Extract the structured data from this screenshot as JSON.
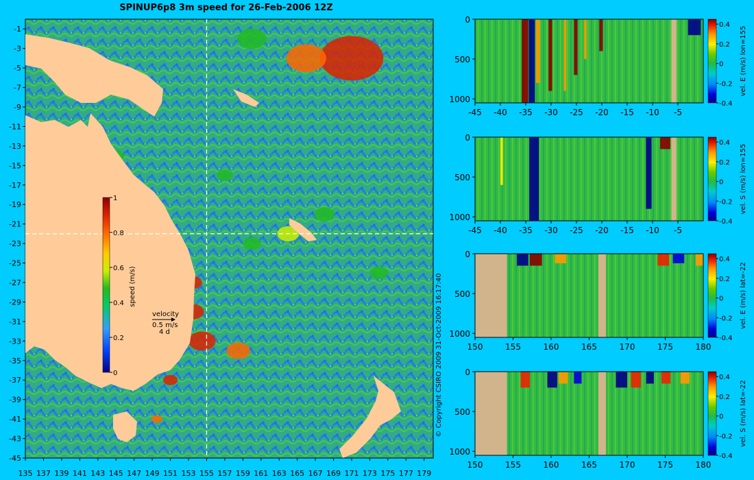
{
  "title": "SPINUP6p8 3m speed for 26-Feb-2006 12Z",
  "copyright": "© Copyright CSIRO 2009   31-Oct-2009 16:17:40",
  "colors": {
    "background": "#00ccff",
    "land": "#ffcc99",
    "section_land": "#d2b48c"
  },
  "chart_data": [
    {
      "type": "heatmap",
      "panel": "speed-map",
      "x": {
        "min": 135,
        "max": 180,
        "ticks": [
          135,
          137,
          139,
          141,
          143,
          145,
          147,
          149,
          151,
          153,
          155,
          157,
          159,
          161,
          163,
          165,
          167,
          169,
          171,
          173,
          175,
          177,
          179
        ]
      },
      "y": {
        "min": -45,
        "max": 0,
        "ticks": [
          -1,
          -3,
          -5,
          -7,
          -9,
          -11,
          -13,
          -15,
          -17,
          -19,
          -21,
          -23,
          -25,
          -27,
          -29,
          -31,
          -33,
          -35,
          -37,
          -39,
          -41,
          -43,
          -45
        ]
      },
      "section_lines": {
        "lon": 155,
        "lat": -22
      },
      "colorbar": {
        "label": "speed (m/s)",
        "min": 0,
        "max": 1,
        "ticks": [
          0,
          0.2,
          0.4,
          0.6,
          0.8,
          1
        ],
        "tick_labels": [
          "0",
          "0.2",
          "0.4",
          "0.6",
          "0.8",
          "1"
        ]
      },
      "velocity_key": {
        "label": "velocity",
        "magnitude": "0.5 m/s",
        "duration": "4 d"
      },
      "features": [
        {
          "lon": 171,
          "lat": -4,
          "speed": 0.95,
          "r": 3.5
        },
        {
          "lon": 166,
          "lat": -4,
          "speed": 0.8,
          "r": 2.2
        },
        {
          "lon": 160,
          "lat": -2,
          "speed": 0.5,
          "r": 1.6
        },
        {
          "lon": 153.5,
          "lat": -27,
          "speed": 0.95,
          "r": 1.0
        },
        {
          "lon": 153.5,
          "lat": -30,
          "speed": 0.9,
          "r": 1.2
        },
        {
          "lon": 154.5,
          "lat": -33,
          "speed": 0.95,
          "r": 1.5
        },
        {
          "lon": 158.5,
          "lat": -34,
          "speed": 0.8,
          "r": 1.3
        },
        {
          "lon": 151,
          "lat": -37,
          "speed": 0.9,
          "r": 0.8
        },
        {
          "lon": 149.5,
          "lat": -41,
          "speed": 0.85,
          "r": 0.6
        },
        {
          "lon": 164,
          "lat": -22,
          "speed": 0.6,
          "r": 1.2
        },
        {
          "lon": 168,
          "lat": -20,
          "speed": 0.55,
          "r": 1.1
        },
        {
          "lon": 160,
          "lat": -23,
          "speed": 0.55,
          "r": 1.0
        },
        {
          "lon": 145,
          "lat": -14,
          "speed": 0.5,
          "r": 0.9
        },
        {
          "lon": 174,
          "lat": -26,
          "speed": 0.5,
          "r": 1.0
        },
        {
          "lon": 157,
          "lat": -16,
          "speed": 0.5,
          "r": 0.9
        }
      ]
    },
    {
      "type": "heatmap",
      "panel": "section-1",
      "ylabel": "vel. E (m/s) lon=155",
      "x": {
        "min": -45,
        "max": 0,
        "ticks": [
          -45,
          -40,
          -35,
          -30,
          -25,
          -20,
          -15,
          -10,
          -5
        ]
      },
      "y": {
        "min": 0,
        "max": 1050,
        "ticks": [
          0,
          500,
          1000
        ],
        "inverted": true
      },
      "colorbar": {
        "min": -0.4,
        "max": 0.45,
        "ticks": [
          -0.4,
          -0.2,
          0,
          0.2,
          0.4
        ],
        "tick_labels": [
          "-0.4",
          "-0.2",
          "0",
          "0.2",
          "0.4"
        ]
      },
      "land": [
        {
          "x0": -6.3,
          "x1": -5.3,
          "d0": 0
        }
      ],
      "features": [
        {
          "x0": -35.8,
          "x1": -34.5,
          "depth": 1050,
          "value": 0.45
        },
        {
          "x0": -34.4,
          "x1": -33.2,
          "depth": 1050,
          "value": -0.4
        },
        {
          "x0": -33,
          "x1": -32.2,
          "depth": 800,
          "value": 0.3
        },
        {
          "x0": -30.5,
          "x1": -29.8,
          "depth": 900,
          "value": 0.45
        },
        {
          "x0": -27.5,
          "x1": -27,
          "depth": 900,
          "value": 0.35
        },
        {
          "x0": -25.5,
          "x1": -24.8,
          "depth": 700,
          "value": 0.45
        },
        {
          "x0": -20.5,
          "x1": -19.8,
          "depth": 400,
          "value": 0.45
        },
        {
          "x0": -23.5,
          "x1": -23,
          "depth": 500,
          "value": 0.3
        },
        {
          "x0": -3,
          "x1": -0.5,
          "depth": 200,
          "value": -0.4
        }
      ]
    },
    {
      "type": "heatmap",
      "panel": "section-2",
      "ylabel": "vel. S (m/s) lon=155",
      "x": {
        "min": -45,
        "max": 0,
        "ticks": [
          -45,
          -40,
          -35,
          -30,
          -25,
          -20,
          -15,
          -10,
          -5
        ]
      },
      "y": {
        "min": 0,
        "max": 1050,
        "ticks": [
          0,
          500,
          1000
        ],
        "inverted": true
      },
      "colorbar": {
        "min": -0.4,
        "max": 0.45,
        "ticks": [
          -0.4,
          -0.2,
          0,
          0.2,
          0.4
        ],
        "tick_labels": [
          "-0.4",
          "-0.2",
          "0",
          "0.2",
          "0.4"
        ]
      },
      "land": [
        {
          "x0": -6.3,
          "x1": -5.3,
          "d0": 0
        }
      ],
      "features": [
        {
          "x0": -34.3,
          "x1": -32.4,
          "depth": 1050,
          "value": -0.4
        },
        {
          "x0": -11.3,
          "x1": -10.2,
          "depth": 900,
          "value": -0.35
        },
        {
          "x0": -8.5,
          "x1": -6.5,
          "depth": 150,
          "value": 0.45
        },
        {
          "x0": -40,
          "x1": -39.5,
          "depth": 600,
          "value": 0.2
        }
      ]
    },
    {
      "type": "heatmap",
      "panel": "section-3",
      "ylabel": "vel. E (m/s) lat=-22",
      "x": {
        "min": 150,
        "max": 180,
        "ticks": [
          150,
          155,
          160,
          165,
          170,
          175,
          180
        ]
      },
      "y": {
        "min": 0,
        "max": 1050,
        "ticks": [
          0,
          500,
          1000
        ],
        "inverted": true
      },
      "colorbar": {
        "min": -0.4,
        "max": 0.45,
        "ticks": [
          -0.4,
          -0.2,
          0,
          0.2,
          0.4
        ],
        "tick_labels": [
          "-0.4",
          "-0.2",
          "0",
          "0.2",
          "0.4"
        ]
      },
      "land": [
        {
          "x0": 150,
          "x1": 154.2,
          "d0": 0
        },
        {
          "x0": 166.2,
          "x1": 167.2,
          "d0": 0
        }
      ],
      "features": [
        {
          "x0": 155.5,
          "x1": 157,
          "depth": 150,
          "value": -0.4
        },
        {
          "x0": 157.2,
          "x1": 158.8,
          "depth": 150,
          "value": 0.45
        },
        {
          "x0": 160.5,
          "x1": 162,
          "depth": 120,
          "value": 0.3
        },
        {
          "x0": 174,
          "x1": 175.5,
          "depth": 150,
          "value": 0.4
        },
        {
          "x0": 176,
          "x1": 177.5,
          "depth": 120,
          "value": -0.3
        },
        {
          "x0": 179,
          "x1": 180,
          "depth": 150,
          "value": 0.3
        }
      ]
    },
    {
      "type": "heatmap",
      "panel": "section-4",
      "ylabel": "vel. S (m/s) lat=-22",
      "x": {
        "min": 150,
        "max": 180,
        "ticks": [
          150,
          155,
          160,
          165,
          170,
          175,
          180
        ]
      },
      "y": {
        "min": 0,
        "max": 1050,
        "ticks": [
          0,
          500,
          1000
        ],
        "inverted": true
      },
      "colorbar": {
        "min": -0.4,
        "max": 0.45,
        "ticks": [
          -0.4,
          -0.2,
          0,
          0.2,
          0.4
        ],
        "tick_labels": [
          "-0.4",
          "-0.2",
          "0",
          "0.2",
          "0.4"
        ]
      },
      "land": [
        {
          "x0": 150,
          "x1": 154.2,
          "d0": 0
        },
        {
          "x0": 166.2,
          "x1": 167.2,
          "d0": 0
        }
      ],
      "features": [
        {
          "x0": 156,
          "x1": 157.2,
          "depth": 200,
          "value": 0.4
        },
        {
          "x0": 159.5,
          "x1": 160.8,
          "depth": 200,
          "value": -0.4
        },
        {
          "x0": 161,
          "x1": 162.2,
          "depth": 150,
          "value": 0.35
        },
        {
          "x0": 163,
          "x1": 164,
          "depth": 150,
          "value": -0.3
        },
        {
          "x0": 168.5,
          "x1": 170,
          "depth": 200,
          "value": -0.4
        },
        {
          "x0": 170.5,
          "x1": 171.8,
          "depth": 200,
          "value": 0.4
        },
        {
          "x0": 172.5,
          "x1": 173.5,
          "depth": 150,
          "value": -0.35
        },
        {
          "x0": 174.5,
          "x1": 175.7,
          "depth": 150,
          "value": 0.4
        },
        {
          "x0": 177,
          "x1": 178.2,
          "depth": 150,
          "value": 0.35
        }
      ]
    }
  ]
}
